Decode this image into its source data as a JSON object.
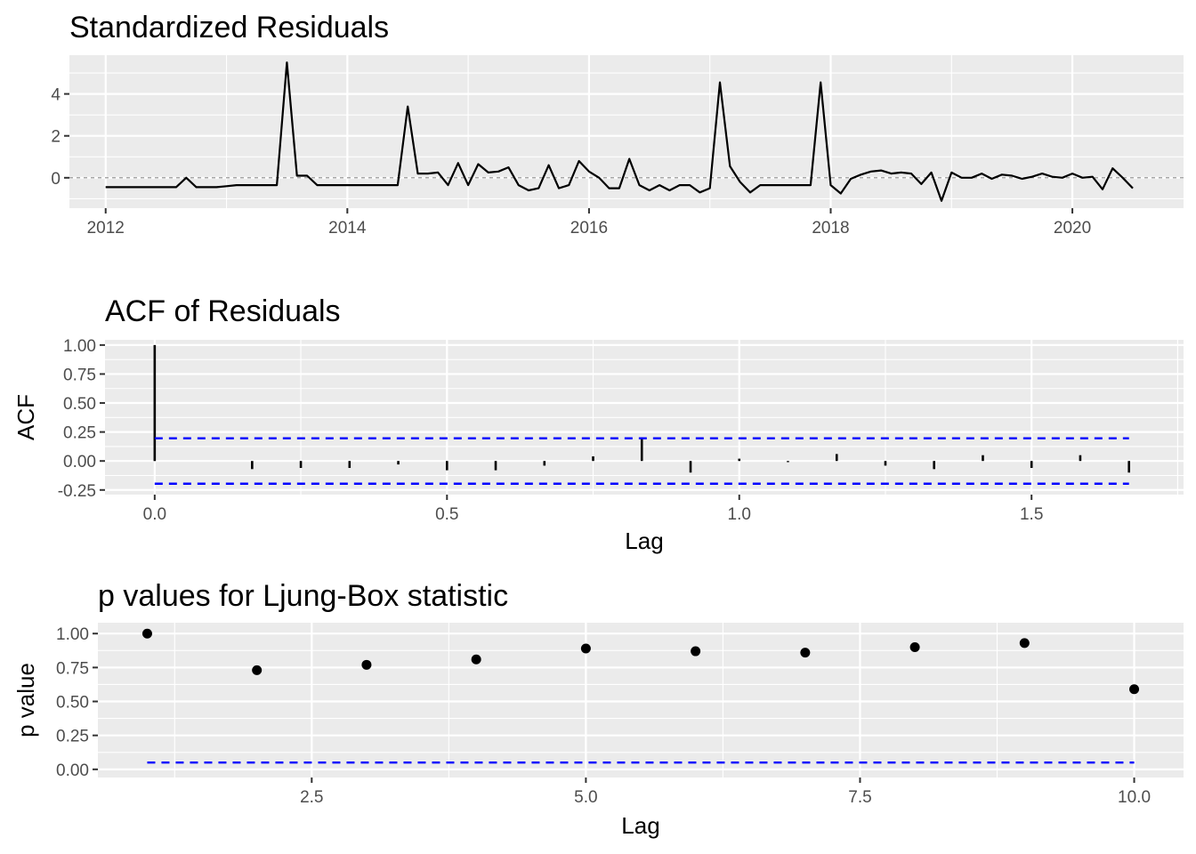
{
  "chart_data": [
    {
      "type": "line",
      "title": "Standardized Residuals",
      "xlabel": "",
      "ylabel": "",
      "xlim": [
        2011.7,
        2020.92
      ],
      "ylim": [
        -1.45,
        5.85
      ],
      "x_ticks": [
        2012,
        2014,
        2016,
        2018,
        2020
      ],
      "x_tick_labels": [
        "2012",
        "2014",
        "2016",
        "2018",
        "2020"
      ],
      "y_ticks": [
        0,
        2,
        4
      ],
      "y_tick_labels": [
        "0",
        "2",
        "4"
      ],
      "x_start": 2012,
      "x_step": 0.083333,
      "reference_line": 0,
      "values": [
        -0.45,
        -0.45,
        -0.45,
        -0.45,
        -0.45,
        -0.45,
        -0.45,
        -0.45,
        0.0,
        -0.45,
        -0.45,
        -0.45,
        -0.4,
        -0.35,
        -0.35,
        -0.35,
        -0.35,
        -0.35,
        5.5,
        0.1,
        0.1,
        -0.35,
        -0.35,
        -0.35,
        -0.35,
        -0.35,
        -0.35,
        -0.35,
        -0.35,
        -0.35,
        3.4,
        0.2,
        0.2,
        0.25,
        -0.35,
        0.7,
        -0.35,
        0.65,
        0.25,
        0.3,
        0.5,
        -0.35,
        -0.6,
        -0.5,
        0.6,
        -0.5,
        -0.35,
        0.8,
        0.3,
        0.0,
        -0.5,
        -0.5,
        0.9,
        -0.35,
        -0.6,
        -0.35,
        -0.6,
        -0.35,
        -0.35,
        -0.7,
        -0.5,
        4.55,
        0.55,
        -0.2,
        -0.7,
        -0.35,
        -0.35,
        -0.35,
        -0.35,
        -0.35,
        -0.35,
        4.55,
        -0.35,
        -0.75,
        -0.05,
        0.15,
        0.3,
        0.35,
        0.2,
        0.25,
        0.2,
        -0.3,
        0.25,
        -1.1,
        0.25,
        0.0,
        0.0,
        0.2,
        -0.05,
        0.15,
        0.1,
        -0.05,
        0.05,
        0.2,
        0.05,
        0.0,
        0.2,
        0.0,
        0.05,
        -0.55,
        0.45,
        0.0,
        -0.5
      ]
    },
    {
      "type": "bar",
      "title": "ACF of Residuals",
      "xlabel": "Lag",
      "ylabel": "ACF",
      "xlim": [
        -0.085,
        1.76
      ],
      "ylim": [
        -0.29,
        1.045
      ],
      "x_ticks": [
        0,
        0.5,
        1.0,
        1.5
      ],
      "x_tick_labels": [
        "0.0",
        "0.5",
        "1.0",
        "1.5"
      ],
      "y_ticks": [
        -0.25,
        0,
        0.25,
        0.5,
        0.75,
        1.0
      ],
      "y_tick_labels": [
        "-0.25",
        "0.00",
        "0.25",
        "0.50",
        "0.75",
        "1.00"
      ],
      "lags": [
        0,
        0.0833,
        0.1667,
        0.25,
        0.3333,
        0.4167,
        0.5,
        0.5833,
        0.6667,
        0.75,
        0.8333,
        0.9167,
        1.0,
        1.0833,
        1.1667,
        1.25,
        1.3333,
        1.4167,
        1.5,
        1.5833,
        1.6667
      ],
      "values": [
        1.0,
        0.0,
        -0.07,
        -0.06,
        -0.06,
        -0.03,
        -0.08,
        -0.08,
        -0.04,
        0.04,
        0.19,
        -0.1,
        0.02,
        -0.01,
        0.06,
        -0.04,
        -0.07,
        0.05,
        -0.06,
        0.05,
        -0.1
      ],
      "confidence_band": [
        0.196,
        -0.196
      ],
      "band_color": "#0000ff"
    },
    {
      "type": "scatter",
      "title": "p values for Ljung-Box statistic",
      "xlabel": "Lag",
      "ylabel": "p value",
      "xlim": [
        0.55,
        10.45
      ],
      "ylim": [
        -0.06,
        1.08
      ],
      "x_ticks": [
        2.5,
        5.0,
        7.5,
        10.0
      ],
      "x_tick_labels": [
        "2.5",
        "5.0",
        "7.5",
        "10.0"
      ],
      "y_ticks": [
        0,
        0.25,
        0.5,
        0.75,
        1.0
      ],
      "y_tick_labels": [
        "0.00",
        "0.25",
        "0.50",
        "0.75",
        "1.00"
      ],
      "x": [
        1,
        2,
        3,
        4,
        5,
        6,
        7,
        8,
        9,
        10
      ],
      "y": [
        1.0,
        0.73,
        0.77,
        0.81,
        0.89,
        0.87,
        0.86,
        0.9,
        0.93,
        0.59
      ],
      "threshold": 0.05,
      "threshold_color": "#0000ff"
    }
  ]
}
